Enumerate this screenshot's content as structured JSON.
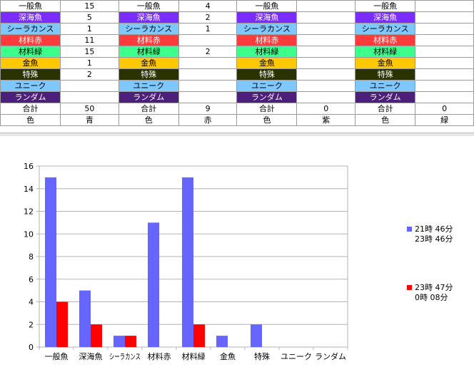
{
  "colors": {
    "一般魚": "#ffffff",
    "深海魚": "#7b2dff",
    "シーラカンス": "#7ec8ff",
    "材料赤": "#ff3b3b",
    "材料緑": "#3dff8c",
    "金魚": "#ffc800",
    "特殊": "#2a3300",
    "ユニーク": "#7ec8ff",
    "ランダム": "#4b1f7a",
    "合計": "#ffffff",
    "色": "#ffffff",
    "series_blue": "#6666ff",
    "series_red": "#ff0000"
  },
  "text_colors": {
    "深海魚": "#ffffff",
    "材料赤": "#ffffff",
    "特殊": "#ffffff",
    "ランダム": "#ffffff"
  },
  "table": {
    "rows": [
      [
        "一般魚",
        "15",
        "一般魚",
        "4",
        "一般魚",
        "",
        "一般魚",
        ""
      ],
      [
        "深海魚",
        "5",
        "深海魚",
        "2",
        "深海魚",
        "",
        "深海魚",
        ""
      ],
      [
        "シーラカンス",
        "1",
        "シーラカンス",
        "1",
        "シーラカンス",
        "",
        "シーラカンス",
        ""
      ],
      [
        "材料赤",
        "11",
        "材料赤",
        "",
        "材料赤",
        "",
        "材料赤",
        ""
      ],
      [
        "材料緑",
        "15",
        "材料緑",
        "2",
        "材料緑",
        "",
        "材料緑",
        ""
      ],
      [
        "金魚",
        "1",
        "金魚",
        "",
        "金魚",
        "",
        "金魚",
        ""
      ],
      [
        "特殊",
        "2",
        "特殊",
        "",
        "特殊",
        "",
        "特殊",
        ""
      ],
      [
        "ユニーク",
        "",
        "ユニーク",
        "",
        "ユニーク",
        "",
        "ユニーク",
        ""
      ],
      [
        "ランダム",
        "",
        "ランダム",
        "",
        "ランダム",
        "",
        "ランダム",
        ""
      ],
      [
        "合計",
        "50",
        "合計",
        "9",
        "合計",
        "0",
        "合計",
        "0"
      ],
      [
        "色",
        "青",
        "色",
        "赤",
        "色",
        "紫",
        "色",
        "緑"
      ]
    ]
  },
  "chart_data": {
    "type": "bar",
    "categories": [
      "一般魚",
      "深海魚",
      "シーラカンス",
      "材料赤",
      "材料緑",
      "金魚",
      "特殊",
      "ユニーク",
      "ランダム"
    ],
    "series": [
      {
        "name": "21時 46分 23時 46分",
        "values": [
          15,
          5,
          1,
          11,
          15,
          1,
          2,
          0,
          0
        ],
        "color": "#6666ff"
      },
      {
        "name": "23時 47分 0時 08分",
        "values": [
          4,
          2,
          1,
          0,
          2,
          0,
          0,
          0,
          0
        ],
        "color": "#ff0000"
      }
    ],
    "ylim": [
      0,
      16
    ],
    "yticks": [
      0,
      2,
      4,
      6,
      8,
      10,
      12,
      14,
      16
    ],
    "grid": true,
    "legend": "right"
  },
  "legend": {
    "items": [
      {
        "line1": "21時 46分",
        "line2": "23時 46分"
      },
      {
        "line1": "23時 47分",
        "line2": "0時 08分"
      }
    ]
  }
}
